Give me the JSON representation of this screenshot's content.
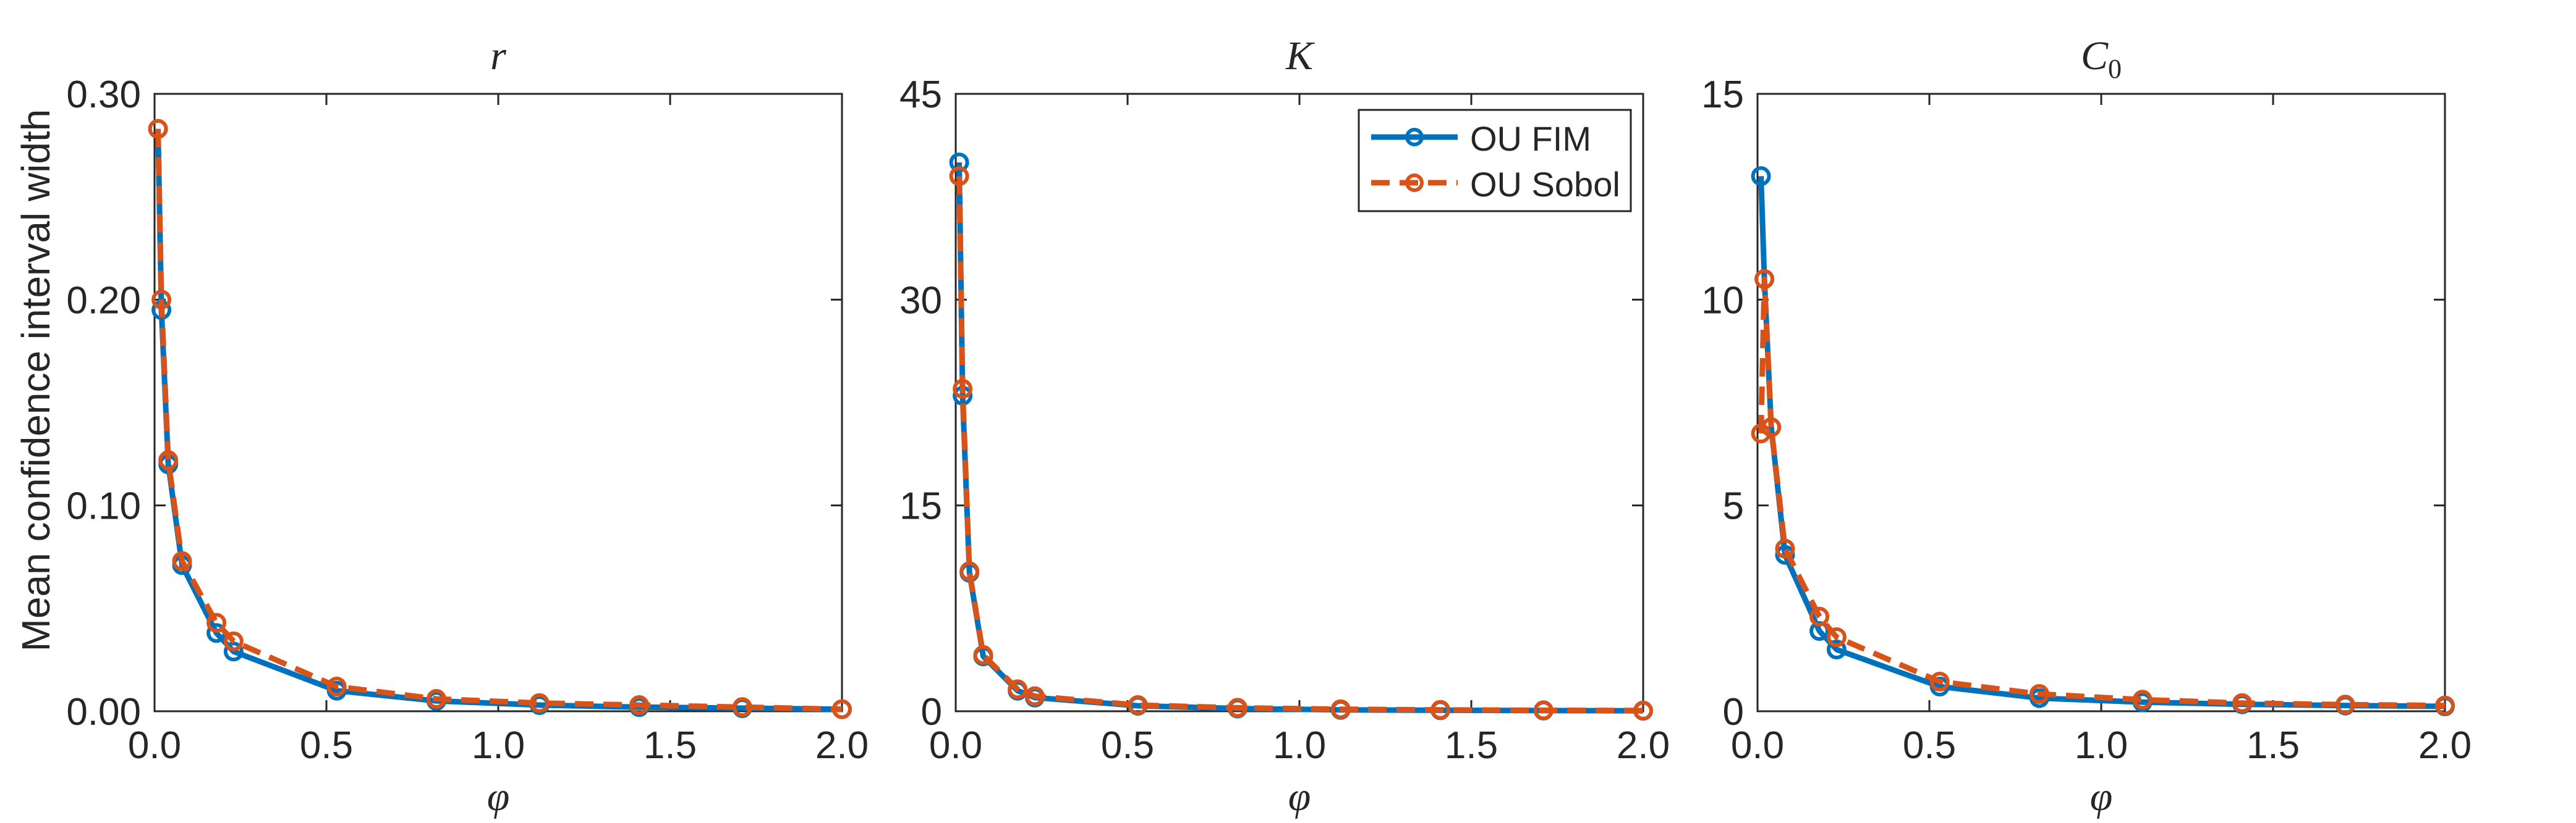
{
  "figure": {
    "ylabel": "Mean confidence interval width",
    "legend": {
      "position": "top-right of middle panel",
      "entries": [
        {
          "label": "OU FIM",
          "color": "#0072BD",
          "style": "solid",
          "marker": "circle"
        },
        {
          "label": "OU Sobol",
          "color": "#D95319",
          "style": "dashed",
          "marker": "circle"
        }
      ]
    }
  },
  "chart_data": [
    {
      "type": "line",
      "title": "r",
      "title_sub": "",
      "xlabel": "φ",
      "ylabel": "Mean confidence interval width",
      "xlim": [
        0,
        2.0
      ],
      "ylim": [
        0,
        0.3
      ],
      "xticks": [
        0.0,
        0.5,
        1.0,
        1.5,
        2.0
      ],
      "xticklabels": [
        "0.0",
        "0.5",
        "1.0",
        "1.5",
        "2.0"
      ],
      "yticks": [
        0,
        0.1,
        0.2,
        0.3
      ],
      "yticklabels": [
        "0.00",
        "0.10",
        "0.20",
        "0.30"
      ],
      "grid": false,
      "series": [
        {
          "name": "OU FIM",
          "color": "#0072BD",
          "dash": false,
          "points": [
            [
              0.01,
              0.283
            ],
            [
              0.02,
              0.195
            ],
            [
              0.04,
              0.12
            ],
            [
              0.08,
              0.071
            ],
            [
              0.18,
              0.038
            ],
            [
              0.23,
              0.029
            ],
            [
              0.53,
              0.01
            ],
            [
              0.82,
              0.005
            ],
            [
              1.12,
              0.003
            ],
            [
              1.41,
              0.002
            ],
            [
              1.71,
              0.0015
            ],
            [
              2.0,
              0.001
            ]
          ]
        },
        {
          "name": "OU Sobol",
          "color": "#D95319",
          "dash": true,
          "points": [
            [
              0.01,
              0.283
            ],
            [
              0.02,
              0.2
            ],
            [
              0.04,
              0.122
            ],
            [
              0.08,
              0.073
            ],
            [
              0.18,
              0.043
            ],
            [
              0.23,
              0.034
            ],
            [
              0.53,
              0.012
            ],
            [
              0.82,
              0.006
            ],
            [
              1.12,
              0.004
            ],
            [
              1.41,
              0.003
            ],
            [
              1.71,
              0.002
            ],
            [
              2.0,
              0.001
            ]
          ]
        }
      ]
    },
    {
      "type": "line",
      "title": "K",
      "title_sub": "",
      "xlabel": "φ",
      "ylabel": "",
      "xlim": [
        0,
        2.0
      ],
      "ylim": [
        0,
        45
      ],
      "xticks": [
        0.0,
        0.5,
        1.0,
        1.5,
        2.0
      ],
      "xticklabels": [
        "0.0",
        "0.5",
        "1.0",
        "1.5",
        "2.0"
      ],
      "yticks": [
        0,
        15,
        30,
        45
      ],
      "yticklabels": [
        "0",
        "15",
        "30",
        "45"
      ],
      "grid": false,
      "series": [
        {
          "name": "OU FIM",
          "color": "#0072BD",
          "dash": false,
          "points": [
            [
              0.01,
              40.0
            ],
            [
              0.02,
              23.0
            ],
            [
              0.04,
              10.1
            ],
            [
              0.08,
              4.0
            ],
            [
              0.18,
              1.5
            ],
            [
              0.23,
              1.0
            ],
            [
              0.53,
              0.4
            ],
            [
              0.82,
              0.2
            ],
            [
              1.12,
              0.1
            ],
            [
              1.41,
              0.07
            ],
            [
              1.71,
              0.05
            ],
            [
              2.0,
              0.03
            ]
          ]
        },
        {
          "name": "OU Sobol",
          "color": "#D95319",
          "dash": true,
          "points": [
            [
              0.01,
              39.0
            ],
            [
              0.02,
              23.5
            ],
            [
              0.04,
              10.2
            ],
            [
              0.08,
              4.1
            ],
            [
              0.18,
              1.6
            ],
            [
              0.23,
              1.1
            ],
            [
              0.53,
              0.45
            ],
            [
              0.82,
              0.25
            ],
            [
              1.12,
              0.15
            ],
            [
              1.41,
              0.1
            ],
            [
              1.71,
              0.07
            ],
            [
              2.0,
              0.05
            ]
          ]
        }
      ]
    },
    {
      "type": "line",
      "title": "C",
      "title_sub": "0",
      "xlabel": "φ",
      "ylabel": "",
      "xlim": [
        0,
        2.0
      ],
      "ylim": [
        0,
        15
      ],
      "xticks": [
        0.0,
        0.5,
        1.0,
        1.5,
        2.0
      ],
      "xticklabels": [
        "0.0",
        "0.5",
        "1.0",
        "1.5",
        "2.0"
      ],
      "yticks": [
        0,
        5,
        10,
        15
      ],
      "yticklabels": [
        "0",
        "5",
        "10",
        "15"
      ],
      "grid": false,
      "series": [
        {
          "name": "OU FIM",
          "color": "#0072BD",
          "dash": false,
          "points": [
            [
              0.01,
              13.0
            ],
            [
              0.02,
              10.5
            ],
            [
              0.04,
              6.9
            ],
            [
              0.08,
              3.8
            ],
            [
              0.18,
              1.95
            ],
            [
              0.23,
              1.5
            ],
            [
              0.53,
              0.6
            ],
            [
              0.82,
              0.32
            ],
            [
              1.12,
              0.22
            ],
            [
              1.41,
              0.17
            ],
            [
              1.71,
              0.14
            ],
            [
              2.0,
              0.12
            ]
          ]
        },
        {
          "name": "OU Sobol",
          "color": "#D95319",
          "dash": true,
          "points": [
            [
              0.01,
              6.75
            ],
            [
              0.02,
              10.5
            ],
            [
              0.04,
              6.9
            ],
            [
              0.08,
              3.95
            ],
            [
              0.18,
              2.3
            ],
            [
              0.23,
              1.8
            ],
            [
              0.53,
              0.72
            ],
            [
              0.82,
              0.42
            ],
            [
              1.12,
              0.28
            ],
            [
              1.41,
              0.2
            ],
            [
              1.71,
              0.16
            ],
            [
              2.0,
              0.14
            ]
          ]
        }
      ]
    }
  ]
}
